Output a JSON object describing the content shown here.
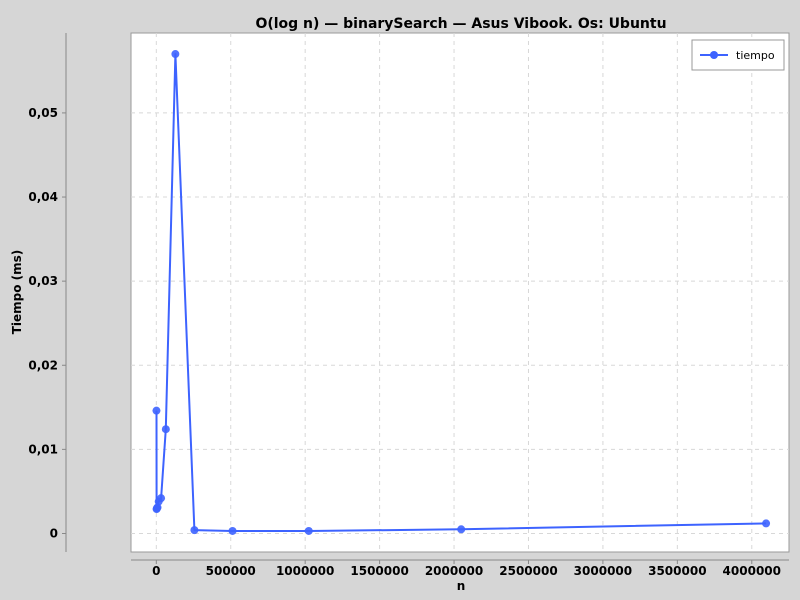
{
  "chart_data": {
    "type": "line",
    "title": "O(log n) — binarySearch — Asus Vibook. Os: Ubuntu",
    "xlabel": "n",
    "ylabel": "Tiempo (ms)",
    "xlim": [
      -170000,
      4250000
    ],
    "ylim": [
      -0.0022,
      0.0595
    ],
    "grid": true,
    "legend_position": "top-right",
    "x_ticks": [
      "0",
      "500000",
      "1000000",
      "1500000",
      "2000000",
      "2500000",
      "3000000",
      "3500000",
      "4000000"
    ],
    "x_tick_values": [
      0,
      500000,
      1000000,
      1500000,
      2000000,
      2500000,
      3000000,
      3500000,
      4000000
    ],
    "y_ticks": [
      "0",
      "0,01",
      "0,02",
      "0,03",
      "0,04",
      "0,05"
    ],
    "y_tick_values": [
      0,
      0.01,
      0.02,
      0.03,
      0.04,
      0.05
    ],
    "series": [
      {
        "name": "tiempo",
        "color": "#3d63ff",
        "x": [
          1000,
          2000,
          4000,
          8000,
          16000,
          32000,
          64000,
          128000,
          256000,
          512000,
          1024000,
          2048000,
          4096000
        ],
        "y": [
          0.0146,
          0.0029,
          0.003,
          0.0031,
          0.0038,
          0.0042,
          0.0124,
          0.057,
          0.0004,
          0.0003,
          0.0003,
          0.0005,
          0.0012
        ]
      }
    ]
  }
}
